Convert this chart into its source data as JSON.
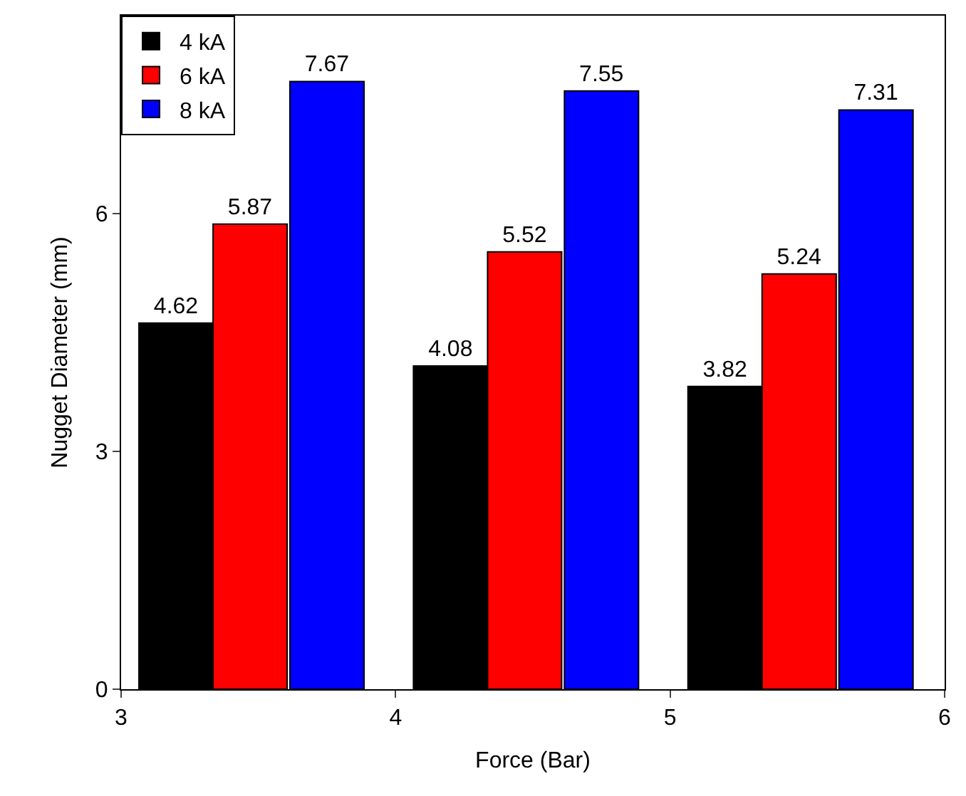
{
  "chart_data": {
    "type": "bar",
    "xlabel": "Force (Bar)",
    "ylabel": "Nugget Diameter (mm)",
    "xlim": [
      3,
      6
    ],
    "xticks": [
      3,
      4,
      5,
      6
    ],
    "ylim": [
      0,
      8.5
    ],
    "yticks": [
      0,
      3,
      6
    ],
    "legend": "top left",
    "data_labels": true,
    "series": [
      {
        "name": "4 kA",
        "color": "#000000",
        "x": [
          3.2,
          4.2,
          5.2
        ],
        "values": [
          4.62,
          4.08,
          3.82
        ]
      },
      {
        "name": "6 kA",
        "color": "#ff0000",
        "x": [
          3.47,
          4.47,
          5.47
        ],
        "values": [
          5.87,
          5.52,
          5.24
        ]
      },
      {
        "name": "8 kA",
        "color": "#0000ff",
        "x": [
          3.75,
          4.75,
          5.75
        ],
        "values": [
          7.67,
          7.55,
          7.31
        ]
      }
    ]
  }
}
